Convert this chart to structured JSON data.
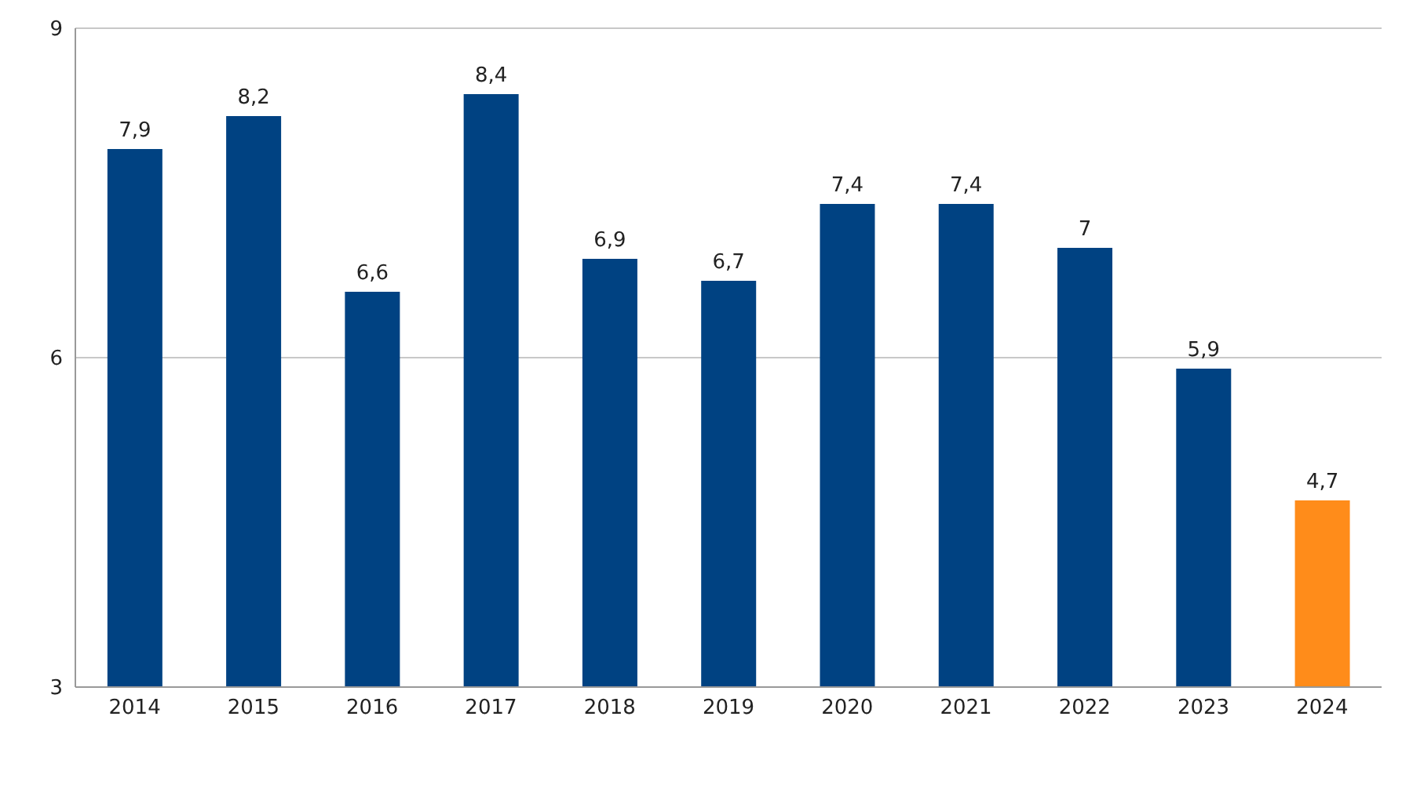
{
  "chart_data": {
    "type": "bar",
    "categories": [
      "2014",
      "2015",
      "2016",
      "2017",
      "2018",
      "2019",
      "2020",
      "2021",
      "2022",
      "2023",
      "2024"
    ],
    "values": [
      7.9,
      8.2,
      6.6,
      8.4,
      6.9,
      6.7,
      7.4,
      7.4,
      7,
      5.9,
      4.7
    ],
    "value_labels": [
      "7,9",
      "8,2",
      "6,6",
      "8,4",
      "6,9",
      "6,7",
      "7,4",
      "7,4",
      "7",
      "5,9",
      "4,7"
    ],
    "colors": [
      "#004282",
      "#004282",
      "#004282",
      "#004282",
      "#004282",
      "#004282",
      "#004282",
      "#004282",
      "#004282",
      "#004282",
      "#ff8c1a"
    ],
    "ylim": [
      3,
      9
    ],
    "yticks": [
      3,
      6,
      9
    ],
    "grid": "y"
  }
}
